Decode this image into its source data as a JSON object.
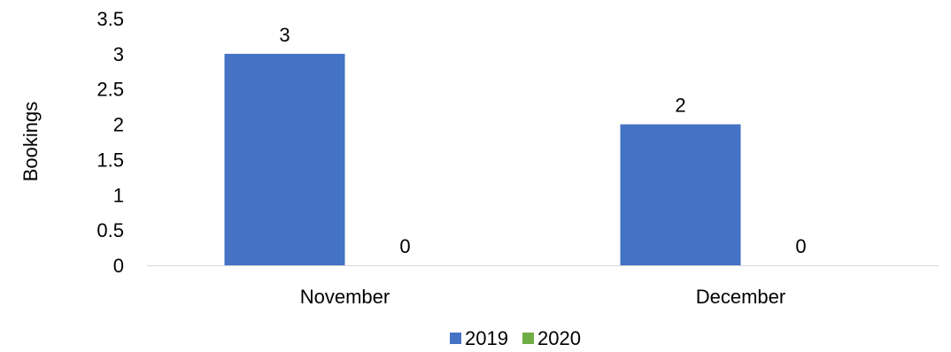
{
  "chart_data": {
    "type": "bar",
    "categories": [
      "November",
      "December"
    ],
    "series": [
      {
        "name": "2019",
        "values": [
          3,
          2
        ],
        "color": "#4472C4"
      },
      {
        "name": "2020",
        "values": [
          0,
          0
        ],
        "color": "#70AD47"
      }
    ],
    "ylabel": "Bookings",
    "ylim": [
      0,
      3.5
    ],
    "yticks": [
      "0",
      "0.5",
      "1",
      "1.5",
      "2",
      "2.5",
      "3",
      "3.5"
    ],
    "ytick_values": [
      0,
      0.5,
      1,
      1.5,
      2,
      2.5,
      3,
      3.5
    ],
    "data_labels": true,
    "grid": false,
    "legend": "bottom"
  }
}
